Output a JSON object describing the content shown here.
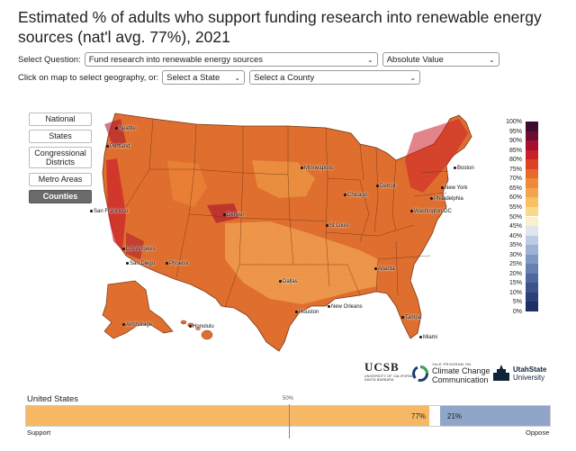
{
  "title": "Estimated % of adults who support funding research into renewable energy sources (nat'l avg. 77%), 2021",
  "controls": {
    "select_question_label": "Select Question:",
    "question_value": "Fund research into renewable energy sources",
    "measure_value": "Absolute Value",
    "geo_prompt_label": "Click on map to select geography, or:",
    "state_placeholder": "Select a State",
    "county_placeholder": "Select a County"
  },
  "geo_buttons": [
    {
      "label": "National",
      "active": false
    },
    {
      "label": "States",
      "active": false
    },
    {
      "label": "Congressional Districts",
      "active": false
    },
    {
      "label": "Metro Areas",
      "active": false
    },
    {
      "label": "Counties",
      "active": true
    }
  ],
  "cities": [
    "Seattle",
    "Portland",
    "San Francisco",
    "Los Angeles",
    "San Diego",
    "Phoenix",
    "Denver",
    "Minneapolis",
    "Chicago",
    "Detroit",
    "St Louis",
    "Dallas",
    "Houston",
    "New Orleans",
    "Atlanta",
    "Tampa",
    "Miami",
    "Washington DC",
    "Philadelphia",
    "New York",
    "Boston",
    "Anchorage",
    "Honolulu"
  ],
  "legend": {
    "labels": [
      "100%",
      "95%",
      "90%",
      "85%",
      "80%",
      "75%",
      "70%",
      "65%",
      "60%",
      "55%",
      "50%",
      "45%",
      "40%",
      "35%",
      "30%",
      "25%",
      "20%",
      "15%",
      "10%",
      "5%",
      "0%"
    ],
    "colors": [
      "#3f0b2e",
      "#6e0d34",
      "#a80f2f",
      "#cc1f2a",
      "#df4127",
      "#e76a2c",
      "#ee8a3a",
      "#f3a54d",
      "#f7c065",
      "#fbd98a",
      "#fcefc9",
      "#dfe6f0",
      "#bccde3",
      "#9cb3d4",
      "#7f99c3",
      "#6580b1",
      "#4f699f",
      "#3c548b",
      "#2c4177",
      "#1e2f62"
    ]
  },
  "national": {
    "name": "United States",
    "support_pct": 77,
    "oppose_pct": 21,
    "support_label": "77%",
    "oppose_label": "21%",
    "midpoint_label": "50%",
    "support_end": "Support",
    "oppose_end": "Oppose"
  },
  "logos": {
    "ucsb_line1": "UCSB",
    "ucsb_line2": "UNIVERSITY OF CALIFORNIA",
    "ucsb_line3": "SANTA BARBARA",
    "yale_small": "YALE PROGRAM ON",
    "yale_line1": "Climate Change",
    "yale_line2": "Communication",
    "usu_line1": "UtahState",
    "usu_line2": "University"
  }
}
